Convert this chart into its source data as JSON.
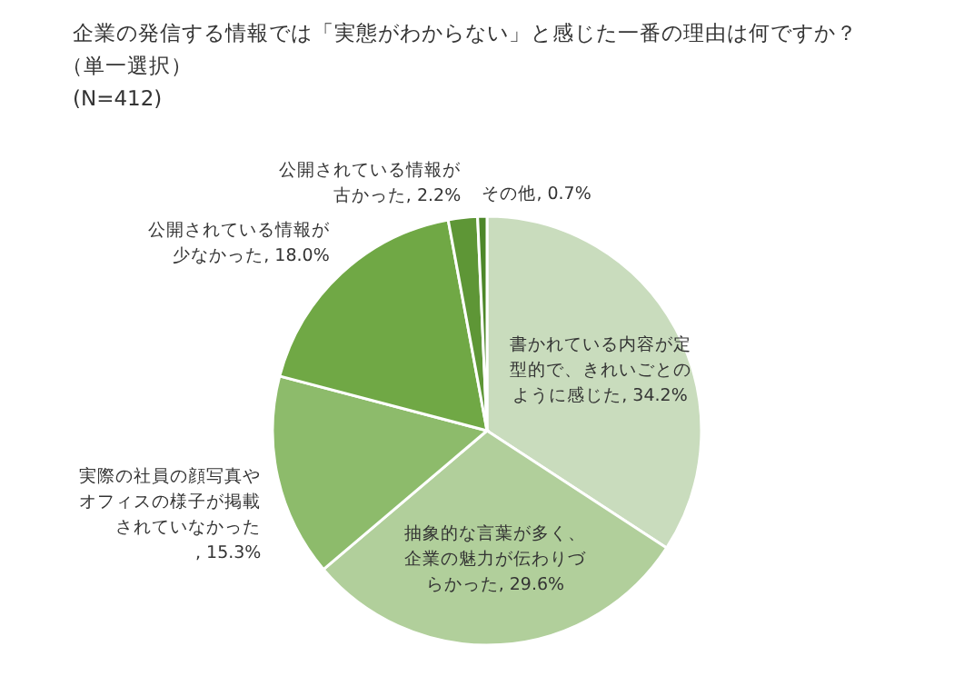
{
  "chart_data": {
    "type": "pie",
    "title": "企業の発信する情報では「実態がわからない」と感じた一番の理由は何ですか？",
    "subtitle": "（単一選択）",
    "annotations": [
      "(N=412)"
    ],
    "categories": [
      "書かれている内容が定型的で、きれいごとのように感じた",
      "抽象的な言葉が多く、企業の魅力が伝わりづらかった",
      "実際の社員の顔写真やオフィスの様子が掲載されていなかった",
      "公開されている情報が少なかった",
      "公開されている情報が古かった",
      "その他"
    ],
    "values": [
      34.2,
      29.6,
      15.3,
      18.0,
      2.2,
      0.7
    ],
    "value_labels": [
      ", 34.2%",
      ", 29.6%",
      ", 15.3%",
      ", 18.0%",
      ", 2.2%",
      ", 0.7%"
    ],
    "colors": [
      "#c9dcbd",
      "#b1cf9b",
      "#8dbb6b",
      "#70a845",
      "#5e9636",
      "#4d8729"
    ]
  }
}
